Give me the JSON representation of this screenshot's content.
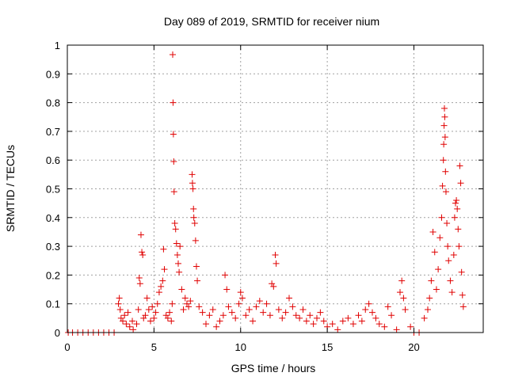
{
  "chart_data": {
    "type": "scatter",
    "title": "Day 089 of 2019, SRMTID for receiver nium",
    "xlabel": "GPS time / hours",
    "ylabel": "SRMTID / TECUs",
    "xlim": [
      0,
      24
    ],
    "ylim": [
      0,
      1
    ],
    "xticks": [
      0,
      5,
      10,
      15,
      20
    ],
    "yticks": [
      0,
      0.1,
      0.2,
      0.3,
      0.4,
      0.5,
      0.6,
      0.7,
      0.8,
      0.9,
      1
    ],
    "xtick_labels": [
      "0",
      "5",
      "10",
      "15",
      "20"
    ],
    "ytick_labels": [
      "0",
      "0.1",
      "0.2",
      "0.3",
      "0.4",
      "0.5",
      "0.6",
      "0.7",
      "0.8",
      "0.9",
      "1"
    ],
    "grid": true,
    "marker": "+",
    "color": "#e00000",
    "series": [
      {
        "name": "SRMTID",
        "points": [
          [
            0.05,
            0
          ],
          [
            0.3,
            0
          ],
          [
            0.6,
            0
          ],
          [
            0.9,
            0
          ],
          [
            1.2,
            0
          ],
          [
            1.5,
            0
          ],
          [
            1.8,
            0
          ],
          [
            2.1,
            0
          ],
          [
            2.4,
            0
          ],
          [
            2.7,
            0
          ],
          [
            2.95,
            0.1
          ],
          [
            3.0,
            0.12
          ],
          [
            3.05,
            0.08
          ],
          [
            3.1,
            0.05
          ],
          [
            3.2,
            0.04
          ],
          [
            3.3,
            0.06
          ],
          [
            3.4,
            0.03
          ],
          [
            3.5,
            0.07
          ],
          [
            3.6,
            0.02
          ],
          [
            3.75,
            0.04
          ],
          [
            3.8,
            0.01
          ],
          [
            4.0,
            0.03
          ],
          [
            4.1,
            0.08
          ],
          [
            4.15,
            0.19
          ],
          [
            4.2,
            0.17
          ],
          [
            4.25,
            0.34
          ],
          [
            4.3,
            0.28
          ],
          [
            4.35,
            0.27
          ],
          [
            4.4,
            0.05
          ],
          [
            4.5,
            0.06
          ],
          [
            4.6,
            0.12
          ],
          [
            4.7,
            0.08
          ],
          [
            4.8,
            0.04
          ],
          [
            4.9,
            0.09
          ],
          [
            5.0,
            0.05
          ],
          [
            5.1,
            0.07
          ],
          [
            5.2,
            0.1
          ],
          [
            5.3,
            0.14
          ],
          [
            5.4,
            0.16
          ],
          [
            5.5,
            0.18
          ],
          [
            5.55,
            0.29
          ],
          [
            5.6,
            0.22
          ],
          [
            5.7,
            0.06
          ],
          [
            5.8,
            0.05
          ],
          [
            5.9,
            0.07
          ],
          [
            6.0,
            0.04
          ],
          [
            6.05,
            0.1
          ],
          [
            6.08,
            0.967
          ],
          [
            6.1,
            0.8
          ],
          [
            6.12,
            0.69
          ],
          [
            6.14,
            0.595
          ],
          [
            6.16,
            0.49
          ],
          [
            6.2,
            0.38
          ],
          [
            6.25,
            0.36
          ],
          [
            6.3,
            0.31
          ],
          [
            6.35,
            0.27
          ],
          [
            6.4,
            0.24
          ],
          [
            6.45,
            0.21
          ],
          [
            6.5,
            0.3
          ],
          [
            6.6,
            0.15
          ],
          [
            6.7,
            0.08
          ],
          [
            6.8,
            0.12
          ],
          [
            6.9,
            0.1
          ],
          [
            7.0,
            0.09
          ],
          [
            7.1,
            0.11
          ],
          [
            7.2,
            0.55
          ],
          [
            7.22,
            0.52
          ],
          [
            7.25,
            0.5
          ],
          [
            7.28,
            0.43
          ],
          [
            7.3,
            0.4
          ],
          [
            7.35,
            0.38
          ],
          [
            7.4,
            0.32
          ],
          [
            7.45,
            0.23
          ],
          [
            7.5,
            0.18
          ],
          [
            7.6,
            0.09
          ],
          [
            7.8,
            0.07
          ],
          [
            8.0,
            0.03
          ],
          [
            8.2,
            0.06
          ],
          [
            8.4,
            0.08
          ],
          [
            8.6,
            0.02
          ],
          [
            8.8,
            0.04
          ],
          [
            9.0,
            0.06
          ],
          [
            9.1,
            0.2
          ],
          [
            9.2,
            0.15
          ],
          [
            9.3,
            0.09
          ],
          [
            9.5,
            0.07
          ],
          [
            9.7,
            0.05
          ],
          [
            9.9,
            0.1
          ],
          [
            10.0,
            0.14
          ],
          [
            10.1,
            0.12
          ],
          [
            10.3,
            0.06
          ],
          [
            10.5,
            0.08
          ],
          [
            10.7,
            0.04
          ],
          [
            10.9,
            0.09
          ],
          [
            11.1,
            0.11
          ],
          [
            11.3,
            0.07
          ],
          [
            11.5,
            0.1
          ],
          [
            11.7,
            0.06
          ],
          [
            11.8,
            0.17
          ],
          [
            11.9,
            0.16
          ],
          [
            12.0,
            0.27
          ],
          [
            12.05,
            0.24
          ],
          [
            12.2,
            0.08
          ],
          [
            12.4,
            0.05
          ],
          [
            12.6,
            0.07
          ],
          [
            12.8,
            0.12
          ],
          [
            13.0,
            0.09
          ],
          [
            13.2,
            0.06
          ],
          [
            13.4,
            0.05
          ],
          [
            13.6,
            0.08
          ],
          [
            13.8,
            0.04
          ],
          [
            14.0,
            0.06
          ],
          [
            14.2,
            0.03
          ],
          [
            14.4,
            0.05
          ],
          [
            14.6,
            0.07
          ],
          [
            14.8,
            0.04
          ],
          [
            15.0,
            0.02
          ],
          [
            15.3,
            0.03
          ],
          [
            15.6,
            0.01
          ],
          [
            15.9,
            0.04
          ],
          [
            16.2,
            0.05
          ],
          [
            16.5,
            0.03
          ],
          [
            16.8,
            0.06
          ],
          [
            17.0,
            0.04
          ],
          [
            17.2,
            0.08
          ],
          [
            17.4,
            0.1
          ],
          [
            17.6,
            0.07
          ],
          [
            17.8,
            0.05
          ],
          [
            18.0,
            0.03
          ],
          [
            18.3,
            0.02
          ],
          [
            18.5,
            0.09
          ],
          [
            18.7,
            0.06
          ],
          [
            19.0,
            0.01
          ],
          [
            19.2,
            0.14
          ],
          [
            19.3,
            0.18
          ],
          [
            19.4,
            0.12
          ],
          [
            19.5,
            0.08
          ],
          [
            19.8,
            0.02
          ],
          [
            20.0,
            0
          ],
          [
            20.3,
            0
          ],
          [
            20.6,
            0.05
          ],
          [
            20.8,
            0.08
          ],
          [
            20.9,
            0.12
          ],
          [
            21.0,
            0.18
          ],
          [
            21.1,
            0.35
          ],
          [
            21.2,
            0.28
          ],
          [
            21.3,
            0.15
          ],
          [
            21.4,
            0.22
          ],
          [
            21.5,
            0.33
          ],
          [
            21.6,
            0.4
          ],
          [
            21.65,
            0.51
          ],
          [
            21.7,
            0.6
          ],
          [
            21.72,
            0.655
          ],
          [
            21.74,
            0.72
          ],
          [
            21.76,
            0.78
          ],
          [
            21.78,
            0.75
          ],
          [
            21.8,
            0.68
          ],
          [
            21.82,
            0.56
          ],
          [
            21.85,
            0.49
          ],
          [
            21.9,
            0.38
          ],
          [
            21.95,
            0.3
          ],
          [
            22.0,
            0.25
          ],
          [
            22.1,
            0.18
          ],
          [
            22.2,
            0.14
          ],
          [
            22.3,
            0.27
          ],
          [
            22.35,
            0.4
          ],
          [
            22.4,
            0.45
          ],
          [
            22.45,
            0.46
          ],
          [
            22.5,
            0.43
          ],
          [
            22.55,
            0.36
          ],
          [
            22.6,
            0.3
          ],
          [
            22.65,
            0.58
          ],
          [
            22.7,
            0.52
          ],
          [
            22.75,
            0.21
          ],
          [
            22.8,
            0.13
          ],
          [
            22.85,
            0.09
          ]
        ]
      }
    ]
  }
}
